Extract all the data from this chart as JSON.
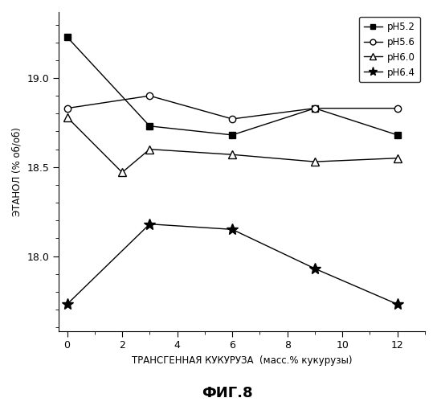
{
  "x": [
    0,
    3,
    6,
    9,
    12
  ],
  "ph52": [
    19.23,
    18.73,
    18.68,
    18.83,
    18.68
  ],
  "ph56": [
    18.83,
    18.9,
    18.77,
    18.83,
    18.83
  ],
  "ph60_x": [
    0,
    2,
    3,
    6,
    9,
    12
  ],
  "ph60": [
    18.78,
    18.47,
    18.6,
    18.57,
    18.53,
    18.55
  ],
  "ph64": [
    17.73,
    18.18,
    18.15,
    17.93,
    17.73
  ],
  "ylabel": "ЭТАНОЛ (% об/об)",
  "xlabel": "ТРАНСГЕННАЯ КУКУРУЗА  (масс.% кукурузы)",
  "title": "ФИГ.8",
  "legend_labels": [
    "pH5.2",
    "pH5.6",
    "pH6.0",
    "pH6.4"
  ],
  "ylim_bottom": 17.58,
  "ylim_top": 19.37,
  "yticks": [
    18.0,
    18.5,
    19.0
  ],
  "xticks": [
    0,
    2,
    4,
    6,
    8,
    10,
    12
  ],
  "color": "black"
}
